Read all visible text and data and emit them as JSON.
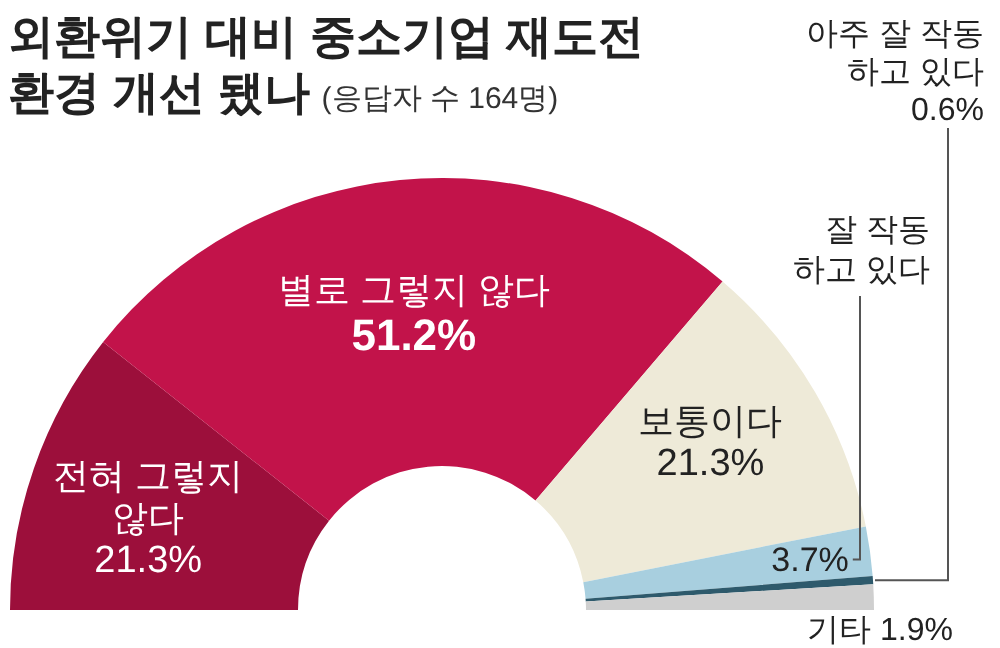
{
  "chart_data": {
    "type": "donut",
    "title": "외환위기 대비 중소기업 재도전\n환경 개선 됐나",
    "subtitle": "(응답자 수 164명)",
    "categories": [
      "전혀 그렇지\n않다",
      "별로 그렇지 않다",
      "보통이다",
      "잘 작동\n하고 있다",
      "아주 잘 작동\n하고 있다",
      "기타"
    ],
    "values": [
      21.3,
      51.2,
      21.3,
      3.7,
      0.6,
      1.9
    ],
    "value_labels": [
      "21.3%",
      "51.2%",
      "21.3%",
      "3.7%",
      "0.6%",
      "1.9%"
    ],
    "colors": [
      "#9c0f3b",
      "#c2134a",
      "#eeead8",
      "#a8cfdf",
      "#2e5a6c",
      "#cfcfcf"
    ],
    "legend": false
  }
}
